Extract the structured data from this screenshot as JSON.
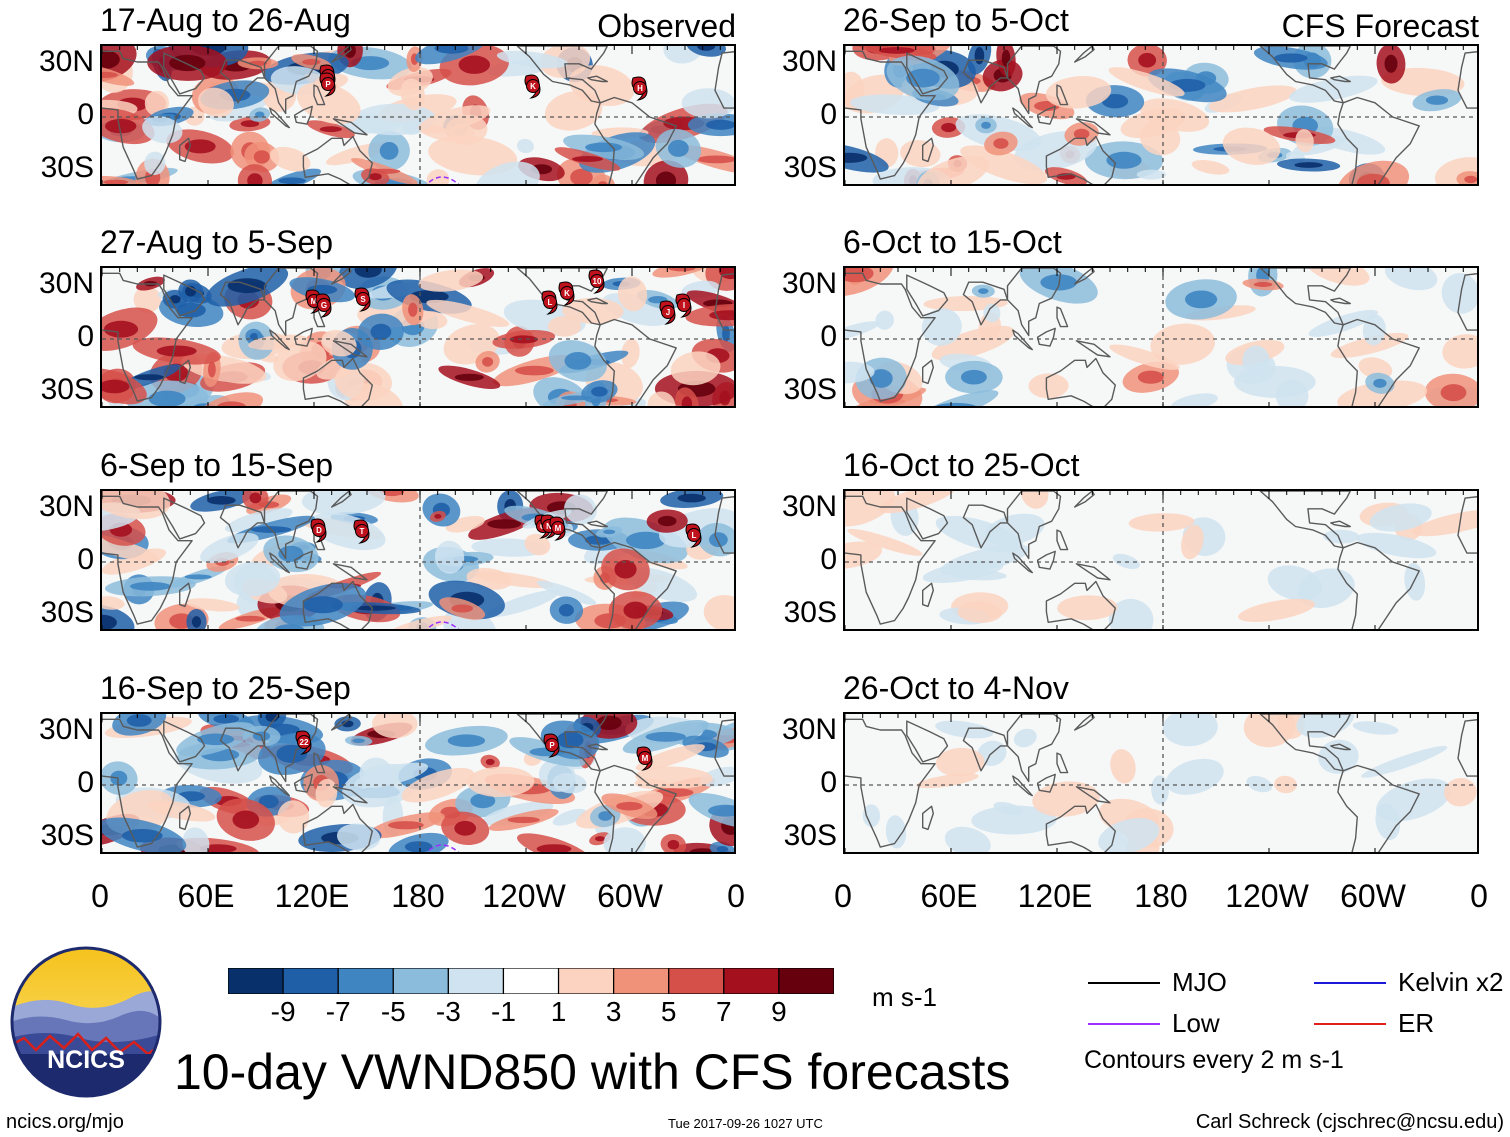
{
  "chart_data": {
    "type": "heatmap",
    "title": "10-day VWND850 with CFS forecasts",
    "variable": "VWND850",
    "units": "m s-1",
    "lat_ticks": [
      "30N",
      "0",
      "30S"
    ],
    "lon_ticks": [
      "0",
      "60E",
      "120E",
      "180",
      "120W",
      "60W",
      "0"
    ],
    "panels_observed": [
      {
        "period": "17-Aug to 26-Aug",
        "source": "Observed",
        "storms": [
          "H",
          "P",
          "K",
          "H"
        ]
      },
      {
        "period": "27-Aug to 5-Sep",
        "source": "",
        "storms": [
          "M",
          "G",
          "S",
          "L",
          "K",
          "10",
          "J",
          "I"
        ]
      },
      {
        "period": "6-Sep to 15-Sep",
        "source": "",
        "storms": [
          "D",
          "T",
          "O",
          "N",
          "M",
          "L"
        ]
      },
      {
        "period": "16-Sep to 25-Sep",
        "source": "",
        "storms": [
          "22",
          "P",
          "M"
        ]
      }
    ],
    "panels_forecast": [
      {
        "period": "26-Sep to 5-Oct",
        "source": "CFS Forecast"
      },
      {
        "period": "6-Oct to 15-Oct",
        "source": ""
      },
      {
        "period": "16-Oct to 25-Oct",
        "source": ""
      },
      {
        "period": "26-Oct to 4-Nov",
        "source": ""
      }
    ],
    "colorbar": {
      "levels": [
        "-9",
        "-7",
        "-5",
        "-3",
        "-1",
        "1",
        "3",
        "5",
        "7",
        "9"
      ],
      "colors": [
        "#08306b",
        "#1f5fa8",
        "#3f85c2",
        "#8cbcdc",
        "#cfe3f0",
        "#ffffff",
        "#fcd3c1",
        "#f0927a",
        "#d6504a",
        "#a5101f",
        "#67000d"
      ]
    },
    "legend": {
      "items": [
        {
          "label": "MJO",
          "color": "#000000"
        },
        {
          "label": "Kelvin x2",
          "color": "#1a1ad8"
        },
        {
          "label": "Low",
          "color": "#9b30ff"
        },
        {
          "label": "ER",
          "color": "#e0201c"
        }
      ],
      "contour_note": "Contours every 2 m s-1"
    }
  },
  "logo": {
    "text": "NCICS"
  },
  "footer": {
    "url": "ncics.org/mjo",
    "timestamp": "Tue 2017-09-26 1027 UTC",
    "author": "Carl Schreck (cjschrec@ncsu.edu)"
  }
}
